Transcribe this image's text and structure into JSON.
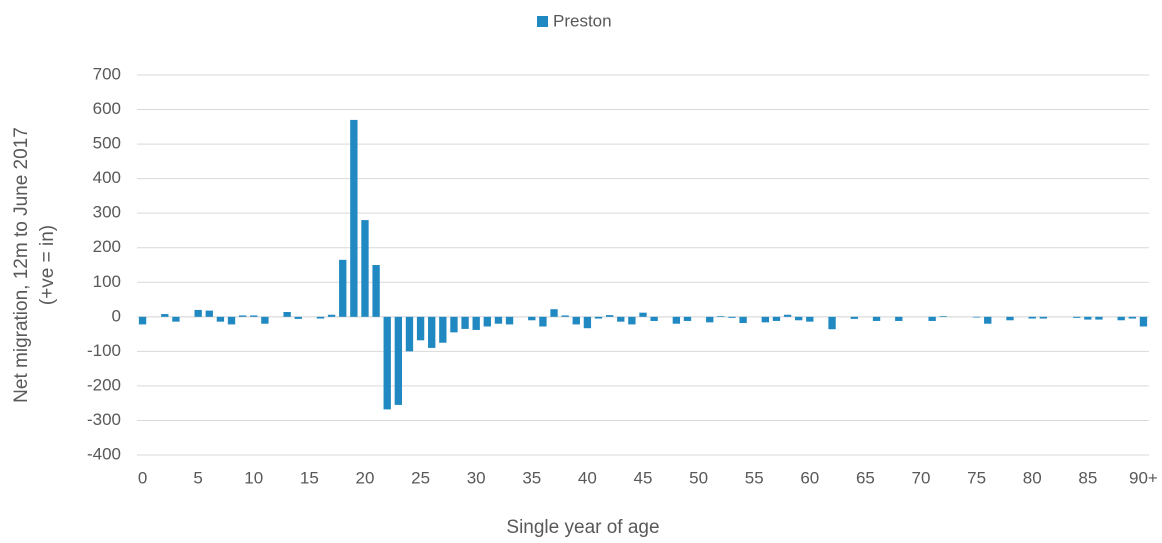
{
  "chart_data": {
    "type": "bar",
    "legend": "top",
    "series": [
      {
        "name": "Preston",
        "color": "#2089c1",
        "values": [
          -22,
          0,
          8,
          -14,
          0,
          20,
          18,
          -14,
          -22,
          4,
          4,
          -20,
          0,
          14,
          -6,
          0,
          -5,
          6,
          165,
          570,
          280,
          150,
          -268,
          -255,
          -100,
          -68,
          -90,
          -75,
          -45,
          -35,
          -38,
          -28,
          -20,
          -22,
          0,
          -10,
          -28,
          22,
          4,
          -22,
          -33,
          -5,
          5,
          -14,
          -22,
          12,
          -12,
          0,
          -20,
          -12,
          0,
          -16,
          2,
          -3,
          -18,
          0,
          -16,
          -12,
          6,
          -10,
          -14,
          0,
          -36,
          0,
          -6,
          0,
          -12,
          0,
          -12,
          0,
          0,
          -12,
          2,
          0,
          0,
          -2,
          -20,
          0,
          -10,
          0,
          -5,
          -5,
          0,
          0,
          -3,
          -8,
          -8,
          0,
          -10,
          -5,
          -28
        ]
      }
    ],
    "categories": [
      "0",
      null,
      null,
      null,
      null,
      "5",
      null,
      null,
      null,
      null,
      "10",
      null,
      null,
      null,
      null,
      "15",
      null,
      null,
      null,
      null,
      "20",
      null,
      null,
      null,
      null,
      "25",
      null,
      null,
      null,
      null,
      "30",
      null,
      null,
      null,
      null,
      "35",
      null,
      null,
      null,
      null,
      "40",
      null,
      null,
      null,
      null,
      "45",
      null,
      null,
      null,
      null,
      "50",
      null,
      null,
      null,
      null,
      "55",
      null,
      null,
      null,
      null,
      "60",
      null,
      null,
      null,
      null,
      "65",
      null,
      null,
      null,
      null,
      "70",
      null,
      null,
      null,
      null,
      "75",
      null,
      null,
      null,
      null,
      "80",
      null,
      null,
      null,
      null,
      "85",
      null,
      null,
      null,
      null,
      "90+"
    ],
    "x_label": "Single year of age",
    "y_label": [
      "Net migration, 12m to June 2017",
      "(+ve = in)"
    ],
    "ylim": [
      -400,
      700
    ],
    "yticks": [
      -400,
      -300,
      -200,
      -100,
      0,
      100,
      200,
      300,
      400,
      500,
      600,
      700
    ],
    "grid": true
  }
}
